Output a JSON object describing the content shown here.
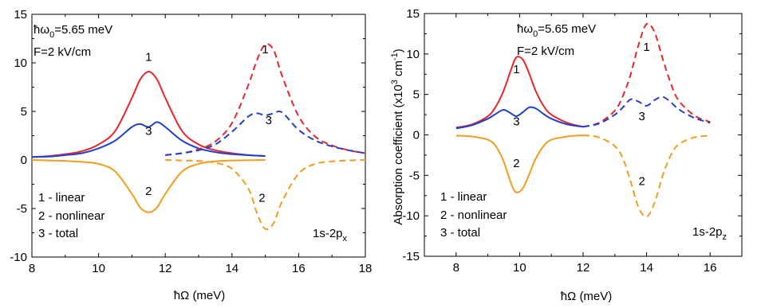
{
  "chart_data": [
    {
      "type": "line",
      "xlabel": "ħΩ (meV)",
      "ylabel": "",
      "xlim": [
        8,
        18
      ],
      "ylim": [
        -10,
        15
      ],
      "xticks": [
        "8",
        "10",
        "12",
        "14",
        "16",
        "18"
      ],
      "yticks": [
        "-10",
        "-5",
        "0",
        "5",
        "10",
        "15"
      ],
      "params": [
        "ħω",
        "0",
        "=5.65 meV"
      ],
      "field": "F=2 kV/cm",
      "transition": [
        "1s-2p",
        "x"
      ],
      "legend": [
        "1 - linear",
        "2 - nonlinear",
        "3 - total"
      ],
      "curve_labels": [
        "1",
        "2",
        "3",
        "1",
        "2",
        "3"
      ],
      "series": [
        {
          "name": "1",
          "color": "#e8262a",
          "style": "solid",
          "x": [
            8.0,
            8.5,
            9.0,
            9.5,
            10.0,
            10.5,
            11.0,
            11.25,
            11.5,
            11.75,
            12.0,
            12.5,
            13.0,
            13.5,
            14.0,
            14.5,
            15.0
          ],
          "y": [
            0.3,
            0.4,
            0.6,
            0.9,
            1.6,
            3.0,
            6.4,
            8.3,
            9.1,
            8.3,
            6.4,
            3.0,
            1.6,
            1.0,
            0.7,
            0.5,
            0.4
          ]
        },
        {
          "name": "2",
          "color": "#f39c1e",
          "style": "solid",
          "x": [
            8.0,
            8.5,
            9.0,
            9.5,
            10.0,
            10.5,
            11.0,
            11.25,
            11.5,
            11.75,
            12.0,
            12.5,
            13.0,
            13.5,
            14.0,
            15.0
          ],
          "y": [
            0.0,
            -0.05,
            -0.1,
            -0.2,
            -0.4,
            -1.2,
            -3.5,
            -4.9,
            -5.4,
            -4.9,
            -3.5,
            -1.2,
            -0.4,
            -0.15,
            -0.05,
            0.0
          ]
        },
        {
          "name": "3",
          "color": "#1f3fcf",
          "style": "solid",
          "x": [
            8.0,
            8.5,
            9.0,
            9.5,
            10.0,
            10.5,
            11.0,
            11.25,
            11.5,
            11.75,
            12.0,
            12.5,
            13.0,
            13.5,
            14.0,
            15.0
          ],
          "y": [
            0.3,
            0.35,
            0.5,
            0.7,
            1.2,
            2.0,
            3.4,
            3.7,
            3.4,
            3.9,
            3.4,
            2.0,
            1.2,
            0.8,
            0.6,
            0.4
          ]
        },
        {
          "name": "1",
          "color": "#e8262a",
          "style": "dashed",
          "x": [
            12.0,
            12.5,
            13.0,
            13.5,
            14.0,
            14.5,
            14.75,
            15.0,
            15.25,
            15.5,
            16.0,
            16.5,
            17.0,
            17.5,
            18.0
          ],
          "y": [
            0.5,
            0.7,
            1.1,
            1.9,
            3.8,
            7.8,
            10.3,
            11.9,
            11.3,
            8.7,
            4.5,
            2.4,
            1.5,
            1.0,
            0.7
          ]
        },
        {
          "name": "2",
          "color": "#f39c1e",
          "style": "dashed",
          "x": [
            12.0,
            12.5,
            13.0,
            13.5,
            14.0,
            14.5,
            14.75,
            15.0,
            15.25,
            15.5,
            16.0,
            16.5,
            17.0,
            17.5,
            18.0
          ],
          "y": [
            0.0,
            -0.05,
            -0.1,
            -0.3,
            -0.9,
            -3.0,
            -5.5,
            -7.1,
            -6.5,
            -4.3,
            -1.4,
            -0.4,
            -0.15,
            -0.05,
            0.0
          ]
        },
        {
          "name": "3",
          "color": "#1f3fcf",
          "style": "dashed",
          "x": [
            12.0,
            12.5,
            13.0,
            13.5,
            14.0,
            14.5,
            14.75,
            15.0,
            15.25,
            15.5,
            16.0,
            16.5,
            17.0,
            17.5,
            18.0
          ],
          "y": [
            0.5,
            0.7,
            1.0,
            1.6,
            2.9,
            4.5,
            4.8,
            4.6,
            4.8,
            4.9,
            3.1,
            2.0,
            1.4,
            1.0,
            0.7
          ]
        }
      ]
    },
    {
      "type": "line",
      "xlabel": "ħΩ (meV)",
      "ylabel": "Absorption coefficient (x10",
      "ylabel_sup": "3",
      "ylabel_tail": " cm",
      "ylabel_sup2": "-1",
      "ylabel_end": ")",
      "xlim": [
        7,
        17
      ],
      "ylim": [
        -15,
        15
      ],
      "xticks": [
        "8",
        "10",
        "12",
        "14",
        "16"
      ],
      "yticks": [
        "-15",
        "-10",
        "-5",
        "0",
        "5",
        "10",
        "15"
      ],
      "params": [
        "ħω",
        "0",
        "=5.65 meV"
      ],
      "field": "F=2 kV/cm",
      "transition": [
        "1s-2p",
        "z"
      ],
      "legend": [
        "1 - linear",
        "2 - nonlinear",
        "3 - total"
      ],
      "curve_labels": [
        "1",
        "2",
        "3",
        "1",
        "2",
        "3"
      ],
      "series": [
        {
          "name": "1",
          "color": "#e8262a",
          "style": "solid",
          "x": [
            8.0,
            8.5,
            9.0,
            9.25,
            9.5,
            9.75,
            9.9,
            10.1,
            10.3,
            10.5,
            10.75,
            11.0,
            11.5,
            12.0
          ],
          "y": [
            0.9,
            1.3,
            2.3,
            3.5,
            5.5,
            8.3,
            9.6,
            9.3,
            7.6,
            5.5,
            3.6,
            2.5,
            1.5,
            1.0
          ]
        },
        {
          "name": "2",
          "color": "#f39c1e",
          "style": "solid",
          "x": [
            8.0,
            8.5,
            9.0,
            9.25,
            9.5,
            9.75,
            9.9,
            10.1,
            10.3,
            10.5,
            10.75,
            11.0,
            11.5,
            12.0
          ],
          "y": [
            -0.1,
            -0.2,
            -0.6,
            -1.4,
            -3.3,
            -6.2,
            -7.1,
            -6.6,
            -4.9,
            -3.0,
            -1.4,
            -0.6,
            -0.2,
            -0.05
          ]
        },
        {
          "name": "3",
          "color": "#1f3fcf",
          "style": "solid",
          "x": [
            8.0,
            8.5,
            9.0,
            9.25,
            9.5,
            9.75,
            9.9,
            10.1,
            10.3,
            10.5,
            10.75,
            11.0,
            11.5,
            12.0
          ],
          "y": [
            0.8,
            1.2,
            2.0,
            2.6,
            3.1,
            2.6,
            2.3,
            2.8,
            3.4,
            3.3,
            2.6,
            2.0,
            1.3,
            1.0
          ]
        },
        {
          "name": "1",
          "color": "#e8262a",
          "style": "dashed",
          "x": [
            12.0,
            12.5,
            13.0,
            13.25,
            13.5,
            13.75,
            14.0,
            14.25,
            14.5,
            14.75,
            15.0,
            15.5,
            16.0
          ],
          "y": [
            1.0,
            1.5,
            3.0,
            4.8,
            7.5,
            11.2,
            13.7,
            12.7,
            9.5,
            6.5,
            4.3,
            2.4,
            1.6
          ]
        },
        {
          "name": "2",
          "color": "#f39c1e",
          "style": "dashed",
          "x": [
            12.0,
            12.5,
            13.0,
            13.25,
            13.5,
            13.75,
            14.0,
            14.25,
            14.5,
            14.75,
            15.0,
            15.5,
            16.0
          ],
          "y": [
            -0.05,
            -0.3,
            -1.4,
            -2.9,
            -5.8,
            -9.0,
            -10.1,
            -8.4,
            -5.1,
            -2.6,
            -1.2,
            -0.3,
            -0.1
          ]
        },
        {
          "name": "3",
          "color": "#1f3fcf",
          "style": "dashed",
          "x": [
            12.0,
            12.5,
            13.0,
            13.25,
            13.5,
            13.75,
            14.0,
            14.25,
            14.5,
            14.75,
            15.0,
            15.5,
            16.0
          ],
          "y": [
            1.0,
            1.4,
            2.5,
            3.4,
            4.4,
            4.1,
            3.6,
            4.3,
            4.7,
            4.1,
            3.2,
            2.1,
            1.5
          ]
        }
      ]
    }
  ]
}
